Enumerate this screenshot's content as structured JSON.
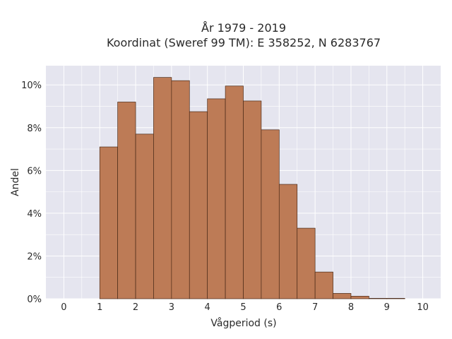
{
  "chart_data": {
    "type": "bar",
    "title_line1": "År 1979 - 2019",
    "title_line2": "Koordinat (Sweref 99 TM): E 358252, N 6283767",
    "xlabel": "Vågperiod (s)",
    "ylabel": "Andel",
    "bin_width": 0.5,
    "bins": [
      {
        "start": 0.0,
        "value": 0.0
      },
      {
        "start": 0.5,
        "value": 0.0
      },
      {
        "start": 1.0,
        "value": 7.1
      },
      {
        "start": 1.5,
        "value": 9.2
      },
      {
        "start": 2.0,
        "value": 7.7
      },
      {
        "start": 2.5,
        "value": 10.35
      },
      {
        "start": 3.0,
        "value": 10.2
      },
      {
        "start": 3.5,
        "value": 8.75
      },
      {
        "start": 4.0,
        "value": 9.35
      },
      {
        "start": 4.5,
        "value": 9.95
      },
      {
        "start": 5.0,
        "value": 9.25
      },
      {
        "start": 5.5,
        "value": 7.9
      },
      {
        "start": 6.0,
        "value": 5.35
      },
      {
        "start": 6.5,
        "value": 3.3
      },
      {
        "start": 7.0,
        "value": 1.25
      },
      {
        "start": 7.5,
        "value": 0.25
      },
      {
        "start": 8.0,
        "value": 0.12
      },
      {
        "start": 8.5,
        "value": 0.02
      },
      {
        "start": 9.0,
        "value": 0.02
      }
    ],
    "xlim": [
      -0.5,
      10.5
    ],
    "ylim": [
      0,
      10.9
    ],
    "x_ticks": [
      "0",
      "1",
      "2",
      "3",
      "4",
      "5",
      "6",
      "7",
      "8",
      "9",
      "10"
    ],
    "y_ticks": [
      "0%",
      "2%",
      "4%",
      "6%",
      "8%",
      "10%"
    ],
    "grid": true,
    "colors": {
      "bar_fill": "#bd7b56",
      "bar_edge": "#4a2a18",
      "plot_bg": "#e5e5ef",
      "grid": "#ffffff"
    }
  }
}
